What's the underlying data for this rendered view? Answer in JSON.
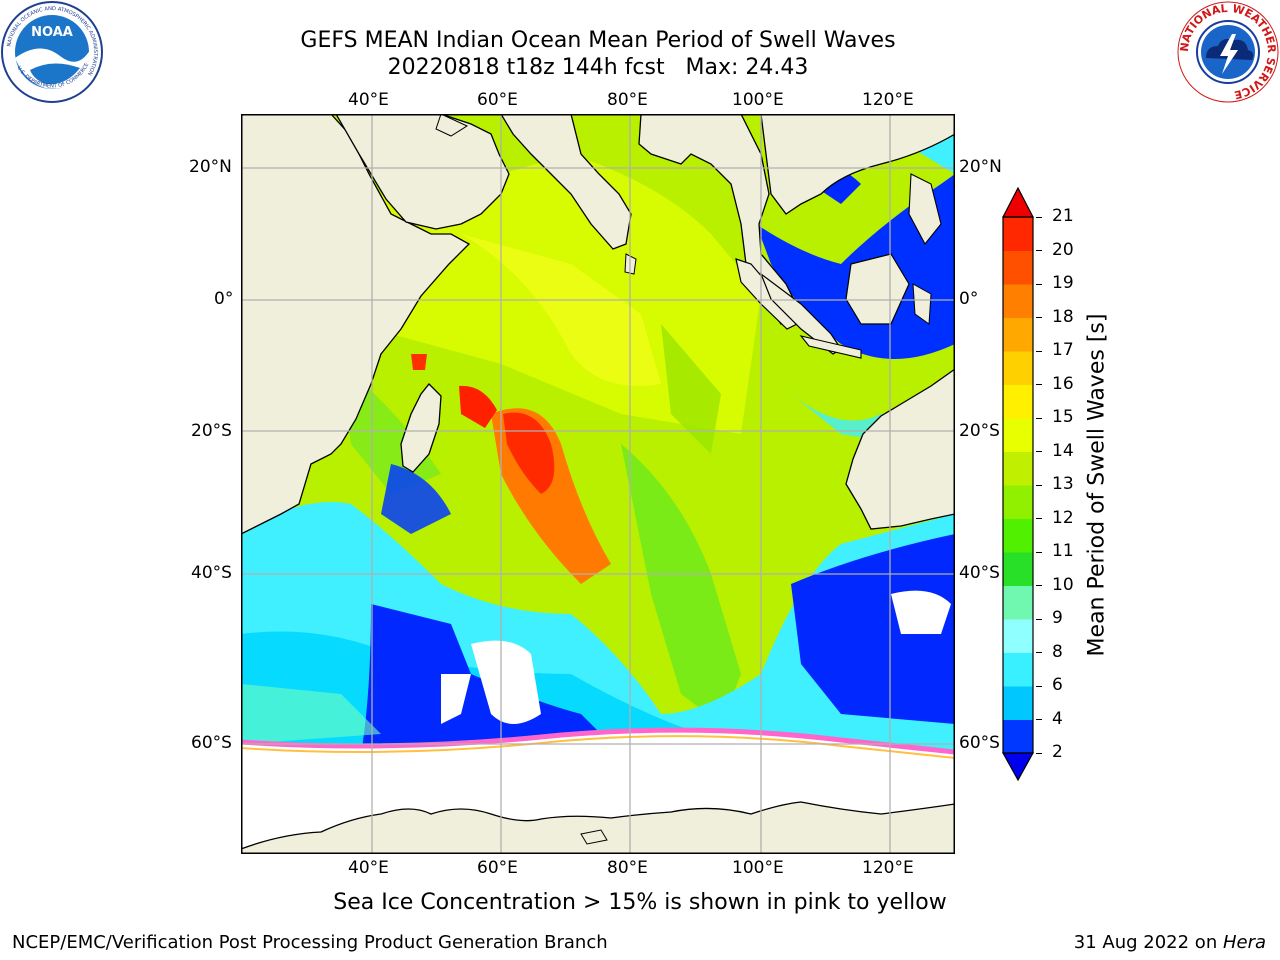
{
  "title": {
    "line1": "GEFS MEAN Indian Ocean Mean Period of Swell Waves",
    "line2": "20220818 t18z 144h fcst   Max: 24.43"
  },
  "logos": {
    "left": "NOAA",
    "left_ring": "NATIONAL OCEANIC AND ATMOSPHERIC ADMINISTRATION",
    "left_ring_bottom": "U.S. DEPARTMENT OF COMMERCE",
    "right_ring": "NATIONAL WEATHER SERVICE"
  },
  "map": {
    "lon_labels": [
      "40°E",
      "60°E",
      "80°E",
      "100°E",
      "120°E"
    ],
    "lat_labels": [
      "20°N",
      "0°",
      "20°S",
      "40°S",
      "60°S"
    ],
    "colors": {
      "land": "#efefdc",
      "grid": "#b0b0b0"
    }
  },
  "colorbar": {
    "label": "Mean Period of Swell Waves [s]",
    "ticks": [
      "2",
      "4",
      "6",
      "8",
      "9",
      "10",
      "11",
      "12",
      "13",
      "14",
      "15",
      "16",
      "17",
      "18",
      "19",
      "20",
      "21"
    ],
    "colors": [
      "#0038ff",
      "#00c8ff",
      "#38f0ff",
      "#90ffff",
      "#70f8b0",
      "#28e028",
      "#50f000",
      "#90f000",
      "#c0f000",
      "#e8ff00",
      "#fff000",
      "#ffd000",
      "#ffa800",
      "#ff8000",
      "#ff5000",
      "#ff2800"
    ],
    "under_color": "#0000ee",
    "over_color": "#ee0000"
  },
  "note": "Sea Ice Concentration > 15% is shown in pink to yellow",
  "footer": {
    "left": "NCEP/EMC/Verification Post Processing Product Generation Branch",
    "right_date": "31 Aug 2022 on ",
    "right_machine": "Hera"
  }
}
